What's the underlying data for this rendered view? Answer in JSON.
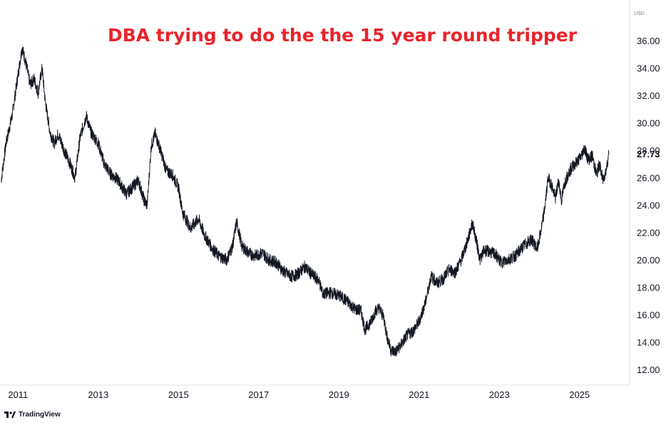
{
  "app": {
    "brand_name": "TradingView"
  },
  "chart_data": {
    "type": "line",
    "title": "DBA trying to do the the 15 year round tripper",
    "currency_label": "USD",
    "last_price_label": "27.73",
    "last_value": 27.73,
    "ylim": [
      11.0,
      38.0
    ],
    "xlim": [
      2010.55,
      2026.25
    ],
    "grid": false,
    "y_ticks": [
      12,
      14,
      16,
      18,
      20,
      22,
      24,
      26,
      28,
      30,
      32,
      34,
      36
    ],
    "y_tick_labels": [
      "12.00",
      "14.00",
      "16.00",
      "18.00",
      "20.00",
      "22.00",
      "24.00",
      "26.00",
      "28.00",
      "30.00",
      "32.00",
      "34.00",
      "36.00"
    ],
    "x_ticks": [
      2011,
      2013,
      2015,
      2017,
      2019,
      2021,
      2023,
      2025
    ],
    "x_tick_labels": [
      "2011",
      "2013",
      "2015",
      "2017",
      "2019",
      "2021",
      "2023",
      "2025"
    ],
    "series": [
      {
        "color": "#131722",
        "points": [
          [
            2010.58,
            25.8
          ],
          [
            2010.7,
            28.5
          ],
          [
            2010.85,
            30.5
          ],
          [
            2011.0,
            33.5
          ],
          [
            2011.1,
            35.5
          ],
          [
            2011.2,
            34.3
          ],
          [
            2011.3,
            32.8
          ],
          [
            2011.4,
            33.2
          ],
          [
            2011.5,
            32.2
          ],
          [
            2011.6,
            34.0
          ],
          [
            2011.68,
            31.5
          ],
          [
            2011.8,
            29.3
          ],
          [
            2011.9,
            28.5
          ],
          [
            2012.0,
            29.2
          ],
          [
            2012.15,
            28.0
          ],
          [
            2012.3,
            27.0
          ],
          [
            2012.42,
            26.0
          ],
          [
            2012.55,
            29.0
          ],
          [
            2012.7,
            30.5
          ],
          [
            2012.82,
            29.3
          ],
          [
            2013.0,
            28.5
          ],
          [
            2013.15,
            27.0
          ],
          [
            2013.3,
            26.3
          ],
          [
            2013.5,
            25.8
          ],
          [
            2013.7,
            24.8
          ],
          [
            2013.85,
            25.3
          ],
          [
            2014.0,
            25.8
          ],
          [
            2014.15,
            24.3
          ],
          [
            2014.22,
            24.0
          ],
          [
            2014.32,
            28.3
          ],
          [
            2014.42,
            29.2
          ],
          [
            2014.55,
            28.0
          ],
          [
            2014.7,
            26.5
          ],
          [
            2014.85,
            26.2
          ],
          [
            2015.0,
            25.3
          ],
          [
            2015.1,
            23.5
          ],
          [
            2015.3,
            22.3
          ],
          [
            2015.5,
            23.0
          ],
          [
            2015.65,
            21.8
          ],
          [
            2015.85,
            20.8
          ],
          [
            2016.0,
            20.3
          ],
          [
            2016.2,
            20.0
          ],
          [
            2016.35,
            21.0
          ],
          [
            2016.45,
            22.8
          ],
          [
            2016.58,
            21.0
          ],
          [
            2016.75,
            20.5
          ],
          [
            2016.9,
            20.3
          ],
          [
            2017.1,
            20.5
          ],
          [
            2017.25,
            20.0
          ],
          [
            2017.45,
            19.8
          ],
          [
            2017.6,
            19.2
          ],
          [
            2017.8,
            18.8
          ],
          [
            2017.95,
            18.9
          ],
          [
            2018.15,
            19.5
          ],
          [
            2018.3,
            19.0
          ],
          [
            2018.5,
            18.5
          ],
          [
            2018.6,
            17.5
          ],
          [
            2018.8,
            17.6
          ],
          [
            2019.0,
            17.4
          ],
          [
            2019.2,
            17.0
          ],
          [
            2019.4,
            16.4
          ],
          [
            2019.55,
            16.3
          ],
          [
            2019.65,
            14.9
          ],
          [
            2019.8,
            15.5
          ],
          [
            2019.9,
            16.2
          ],
          [
            2020.0,
            16.5
          ],
          [
            2020.12,
            15.8
          ],
          [
            2020.2,
            14.4
          ],
          [
            2020.3,
            13.4
          ],
          [
            2020.42,
            13.3
          ],
          [
            2020.55,
            13.8
          ],
          [
            2020.7,
            14.5
          ],
          [
            2020.85,
            14.8
          ],
          [
            2021.0,
            15.5
          ],
          [
            2021.15,
            16.8
          ],
          [
            2021.3,
            18.8
          ],
          [
            2021.45,
            18.3
          ],
          [
            2021.6,
            18.6
          ],
          [
            2021.75,
            19.3
          ],
          [
            2021.9,
            19.1
          ],
          [
            2022.05,
            20.0
          ],
          [
            2022.2,
            21.3
          ],
          [
            2022.33,
            22.7
          ],
          [
            2022.42,
            21.5
          ],
          [
            2022.52,
            20.0
          ],
          [
            2022.62,
            20.7
          ],
          [
            2022.75,
            20.6
          ],
          [
            2022.9,
            20.4
          ],
          [
            2023.05,
            19.8
          ],
          [
            2023.2,
            20.0
          ],
          [
            2023.4,
            20.3
          ],
          [
            2023.6,
            21.0
          ],
          [
            2023.8,
            21.5
          ],
          [
            2023.95,
            20.8
          ],
          [
            2024.05,
            22.3
          ],
          [
            2024.12,
            23.5
          ],
          [
            2024.22,
            26.0
          ],
          [
            2024.3,
            25.5
          ],
          [
            2024.4,
            24.5
          ],
          [
            2024.48,
            25.8
          ],
          [
            2024.55,
            24.3
          ],
          [
            2024.62,
            25.5
          ],
          [
            2024.72,
            26.3
          ],
          [
            2024.82,
            26.8
          ],
          [
            2024.95,
            27.2
          ],
          [
            2025.05,
            27.6
          ],
          [
            2025.12,
            28.2
          ],
          [
            2025.22,
            27.3
          ],
          [
            2025.32,
            27.6
          ],
          [
            2025.42,
            26.2
          ],
          [
            2025.5,
            27.0
          ],
          [
            2025.58,
            25.8
          ],
          [
            2025.66,
            26.5
          ],
          [
            2025.73,
            27.73
          ]
        ]
      }
    ]
  }
}
